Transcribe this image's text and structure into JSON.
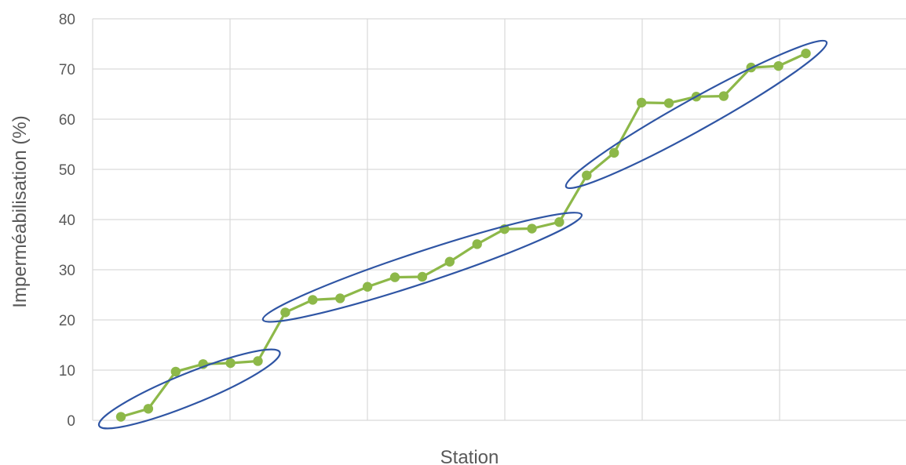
{
  "chart_data": {
    "type": "line",
    "title": "",
    "xlabel": "Station",
    "ylabel": "Imperméabilisation (%)",
    "ylim": [
      0,
      80
    ],
    "yticks": [
      "0",
      "10",
      "20",
      "30",
      "40",
      "50",
      "60",
      "70",
      "80"
    ],
    "grid": true,
    "legend": "none",
    "series": [
      {
        "color": "#8db849",
        "x": [
          1,
          2,
          3,
          4,
          5,
          6,
          7,
          8,
          9,
          10,
          11,
          12,
          13,
          14,
          15,
          16,
          17,
          18,
          19,
          20,
          21,
          22,
          23,
          24,
          25,
          26
        ],
        "values": [
          0.7,
          2.3,
          9.7,
          11.2,
          11.4,
          11.8,
          21.5,
          24.0,
          24.3,
          26.6,
          28.5,
          28.6,
          31.6,
          35.1,
          38.1,
          38.2,
          39.5,
          48.8,
          53.3,
          63.3,
          63.2,
          64.5,
          64.6,
          70.3,
          70.6,
          73.1
        ]
      }
    ],
    "annotations": [
      {
        "shape": "ellipse",
        "color": "#2f55a4",
        "encloses_x": [
          1,
          6
        ]
      },
      {
        "shape": "ellipse",
        "color": "#2f55a4",
        "encloses_x": [
          7,
          17
        ]
      },
      {
        "shape": "ellipse",
        "color": "#2f55a4",
        "encloses_x": [
          18,
          26
        ]
      }
    ]
  }
}
